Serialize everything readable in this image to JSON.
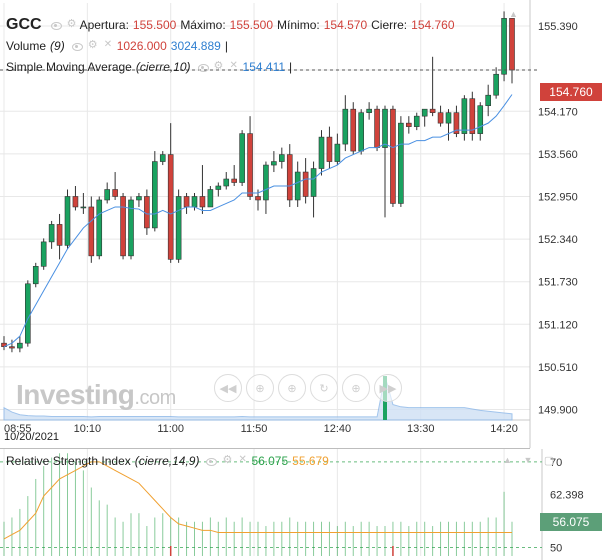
{
  "header": {
    "symbol": "GCC",
    "open_label": "Apertura:",
    "open_value": "155.500",
    "high_label": "Máximo:",
    "high_value": "155.500",
    "low_label": "Mínimo:",
    "low_value": "154.570",
    "close_label": "Cierre:",
    "close_value": "154.760"
  },
  "volume_legend": {
    "name": "Volume",
    "params": "(9)",
    "value1": "1026.000",
    "value2": "3024.889"
  },
  "sma_legend": {
    "name": "Simple Moving Average",
    "params": "(cierre,10)",
    "value": "154.411"
  },
  "rsi_legend": {
    "name": "Relative Strength Index",
    "params": "(cierre,14,9)",
    "value1": "56.075",
    "value2": "55.679"
  },
  "watermark": {
    "brand": "Investing",
    "suffix": ".com"
  },
  "date_label": "10/20/2021",
  "current_price_tag": "154.760",
  "rsi_tag": "56.075",
  "colors": {
    "up": "#1aa260",
    "down": "#d0423b",
    "sma": "#4a90e2",
    "rsi": "#f0a030",
    "volume": "#8ab6e8",
    "grid": "#e8e8e8"
  },
  "nav_icons": [
    "rewind-icon",
    "zoom-out-icon",
    "zoom-in-icon",
    "reset-zoom-icon",
    "zoom-icon",
    "forward-icon"
  ],
  "chart_data": [
    {
      "type": "candlestick",
      "x_ticks": [
        "08:55",
        "10:10",
        "11:00",
        "11:50",
        "12:40",
        "13:30",
        "14:20"
      ],
      "y_ticks": [
        149.9,
        150.51,
        151.12,
        151.73,
        152.34,
        152.95,
        153.56,
        154.17,
        154.76,
        155.39
      ],
      "ylim": [
        149.75,
        155.72
      ],
      "ohlc": [
        [
          150.85,
          150.95,
          150.75,
          150.8
        ],
        [
          150.8,
          150.9,
          150.72,
          150.78
        ],
        [
          150.78,
          150.95,
          150.72,
          150.85
        ],
        [
          150.85,
          151.75,
          150.8,
          151.7
        ],
        [
          151.7,
          152.0,
          151.65,
          151.95
        ],
        [
          151.95,
          152.35,
          151.9,
          152.3
        ],
        [
          152.3,
          152.6,
          152.2,
          152.55
        ],
        [
          152.55,
          152.7,
          152.05,
          152.25
        ],
        [
          152.25,
          153.05,
          152.2,
          152.95
        ],
        [
          152.95,
          153.1,
          152.75,
          152.8
        ],
        [
          152.8,
          153.0,
          152.7,
          152.8
        ],
        [
          152.8,
          152.95,
          152.0,
          152.1
        ],
        [
          152.1,
          152.95,
          152.05,
          152.9
        ],
        [
          152.9,
          153.15,
          152.85,
          153.05
        ],
        [
          153.05,
          153.3,
          152.9,
          152.95
        ],
        [
          152.95,
          153.0,
          152.05,
          152.1
        ],
        [
          152.1,
          152.95,
          152.05,
          152.9
        ],
        [
          152.9,
          153.0,
          152.8,
          152.95
        ],
        [
          152.95,
          153.05,
          152.4,
          152.5
        ],
        [
          152.5,
          153.6,
          152.45,
          153.45
        ],
        [
          153.45,
          153.6,
          153.4,
          153.55
        ],
        [
          153.55,
          154.0,
          152.0,
          152.05
        ],
        [
          152.05,
          153.05,
          152.0,
          152.95
        ],
        [
          152.95,
          153.0,
          152.7,
          152.8
        ],
        [
          152.8,
          153.0,
          152.75,
          152.95
        ],
        [
          152.95,
          153.4,
          152.7,
          152.8
        ],
        [
          152.8,
          153.1,
          152.8,
          153.05
        ],
        [
          153.05,
          153.15,
          152.95,
          153.1
        ],
        [
          153.1,
          153.3,
          153.05,
          153.2
        ],
        [
          153.2,
          153.4,
          153.1,
          153.15
        ],
        [
          153.15,
          153.9,
          153.1,
          153.85
        ],
        [
          153.85,
          154.1,
          152.9,
          152.95
        ],
        [
          152.95,
          153.05,
          152.75,
          152.9
        ],
        [
          152.9,
          153.45,
          152.7,
          153.4
        ],
        [
          153.4,
          153.6,
          153.3,
          153.45
        ],
        [
          153.45,
          153.65,
          153.35,
          153.55
        ],
        [
          153.55,
          153.7,
          152.8,
          152.9
        ],
        [
          152.9,
          153.45,
          152.8,
          153.3
        ],
        [
          153.3,
          153.5,
          152.85,
          152.95
        ],
        [
          152.95,
          153.45,
          152.65,
          153.35
        ],
        [
          153.35,
          153.9,
          153.25,
          153.8
        ],
        [
          153.8,
          153.95,
          153.35,
          153.45
        ],
        [
          153.45,
          153.85,
          153.4,
          153.7
        ],
        [
          153.7,
          154.4,
          153.6,
          154.2
        ],
        [
          154.2,
          154.3,
          153.55,
          153.6
        ],
        [
          153.6,
          154.2,
          153.55,
          154.15
        ],
        [
          154.15,
          154.3,
          154.05,
          154.2
        ],
        [
          154.2,
          154.25,
          153.6,
          153.65
        ],
        [
          153.65,
          154.25,
          152.65,
          154.2
        ],
        [
          154.2,
          154.25,
          152.8,
          152.85
        ],
        [
          152.85,
          154.1,
          152.8,
          154.0
        ],
        [
          154.0,
          154.1,
          153.85,
          153.95
        ],
        [
          153.95,
          154.15,
          153.9,
          154.1
        ],
        [
          154.1,
          154.2,
          153.95,
          154.2
        ],
        [
          154.2,
          154.95,
          154.1,
          154.15
        ],
        [
          154.15,
          154.25,
          153.95,
          154.0
        ],
        [
          154.0,
          154.2,
          153.75,
          154.15
        ],
        [
          154.15,
          154.25,
          153.8,
          153.85
        ],
        [
          153.85,
          154.4,
          153.75,
          154.35
        ],
        [
          154.35,
          154.45,
          153.75,
          153.85
        ],
        [
          153.85,
          154.3,
          153.75,
          154.25
        ],
        [
          154.25,
          154.55,
          154.1,
          154.4
        ],
        [
          154.4,
          154.8,
          154.35,
          154.7
        ],
        [
          154.7,
          155.6,
          154.6,
          155.5
        ],
        [
          155.5,
          155.5,
          154.57,
          154.76
        ]
      ],
      "sma": [
        150.8,
        150.85,
        150.95,
        151.2,
        151.4,
        151.6,
        151.8,
        152.0,
        152.2,
        152.35,
        152.5,
        152.6,
        152.7,
        152.75,
        152.8,
        152.8,
        152.78,
        152.77,
        152.7,
        152.7,
        152.75,
        152.7,
        152.75,
        152.8,
        152.8,
        152.75,
        152.75,
        152.8,
        152.85,
        152.9,
        153.0,
        153.0,
        153.0,
        153.05,
        153.1,
        153.1,
        153.1,
        153.15,
        153.2,
        153.2,
        153.3,
        153.35,
        153.4,
        153.5,
        153.55,
        153.6,
        153.65,
        153.65,
        153.7,
        153.65,
        153.7,
        153.7,
        153.75,
        153.75,
        153.8,
        153.8,
        153.85,
        153.9,
        153.9,
        153.9,
        153.95,
        154.0,
        154.1,
        154.25,
        154.41
      ],
      "volume": [
        28,
        18,
        12,
        10,
        9,
        9,
        8,
        8,
        8,
        8,
        8,
        7,
        8,
        8,
        8,
        8,
        8,
        8,
        8,
        8,
        8,
        8,
        7,
        7,
        7,
        7,
        7,
        7,
        7,
        7,
        8,
        7,
        7,
        7,
        7,
        7,
        7,
        7,
        7,
        7,
        7,
        7,
        7,
        7,
        7,
        7,
        7,
        7,
        100,
        35,
        30,
        28,
        28,
        28,
        28,
        28,
        28,
        28,
        28,
        25,
        22,
        20,
        18,
        16,
        14
      ]
    },
    {
      "type": "line",
      "title": "Relative Strength Index",
      "y_ticks": [
        50,
        62.398,
        70
      ],
      "ylim": [
        48,
        73
      ],
      "rsi": [
        52,
        53,
        54,
        56,
        58,
        62,
        64,
        66,
        67,
        68,
        69,
        70,
        70,
        69,
        68,
        67,
        66,
        65,
        63,
        61,
        59,
        57,
        55.5,
        55,
        54.5,
        54,
        54,
        53.5,
        53.5,
        53.5,
        53.5,
        53.5,
        53.5,
        53.5,
        53.5,
        53.5,
        53.5,
        53.5,
        53.5,
        53.5,
        53.5,
        53.5,
        53.5,
        53.5,
        53.5,
        53.5,
        53.5,
        53.5,
        53.5,
        53.5,
        53.5,
        53.5,
        53.5,
        53.5,
        53.5,
        53.5,
        53.5,
        53.5,
        53.5,
        53.5,
        53.5,
        53.5,
        53.5,
        53.5,
        53.5
      ],
      "rsi_spikes": [
        56,
        57,
        59,
        62,
        66,
        69,
        71,
        72,
        72,
        70,
        68,
        64,
        61,
        60,
        57,
        56,
        58,
        58,
        55,
        57,
        58,
        57,
        57,
        56,
        56,
        56,
        57,
        56,
        57,
        56,
        57,
        56,
        56,
        55,
        56,
        56,
        57,
        56,
        56,
        56,
        56,
        56,
        55,
        56,
        55,
        56,
        56,
        55,
        55,
        56,
        56,
        55,
        56,
        56,
        55,
        56,
        56,
        56,
        56,
        56,
        56,
        57,
        57,
        63,
        56
      ]
    }
  ]
}
